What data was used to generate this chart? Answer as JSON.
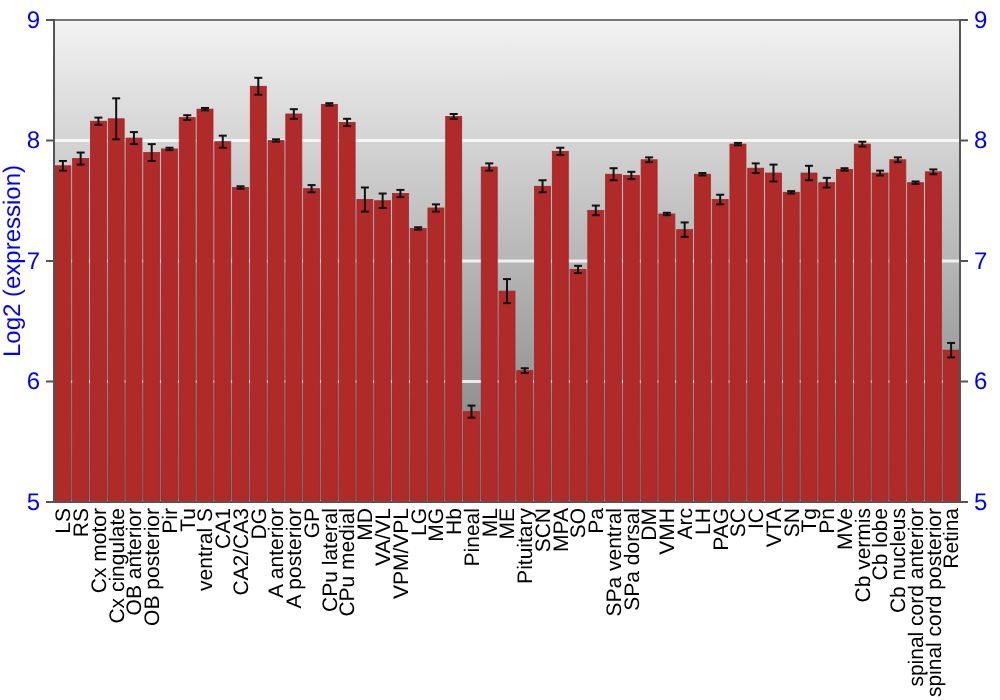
{
  "chart_data": {
    "type": "bar",
    "ylabel": "Log2 (expression)",
    "categories": [
      "LS",
      "RS",
      "Cx motor",
      "Cx cingulate",
      "OB anterior",
      "OB posterior",
      "Pir",
      "Tu",
      "ventral S",
      "CA1",
      "CA2/CA3",
      "DG",
      "A anterior",
      "A posterior",
      "GP",
      "CPu lateral",
      "CPu medial",
      "MD",
      "VA/VL",
      "VPM/VPL",
      "LG",
      "MG",
      "Hb",
      "Pineal",
      "ML",
      "ME",
      "Pituitary",
      "SCN",
      "MPA",
      "SO",
      "Pa",
      "SPa ventral",
      "SPa dorsal",
      "DM",
      "VMH",
      "Arc",
      "LH",
      "PAG",
      "SC",
      "IC",
      "VTA",
      "SN",
      "Tg",
      "Pn",
      "MVe",
      "Cb vermis",
      "Cb lobe",
      "Cb nucleus",
      "spinal cord anterior",
      "spinal cord posterior",
      "Retina"
    ],
    "values": [
      7.79,
      7.85,
      8.16,
      8.18,
      8.02,
      7.9,
      7.93,
      8.19,
      8.26,
      7.99,
      7.61,
      8.45,
      8.0,
      8.22,
      7.6,
      8.3,
      8.15,
      7.51,
      7.5,
      7.56,
      7.27,
      7.44,
      8.2,
      5.75,
      7.78,
      6.75,
      6.09,
      7.62,
      7.91,
      6.93,
      7.42,
      7.72,
      7.71,
      7.84,
      7.39,
      7.26,
      7.72,
      7.51,
      7.97,
      7.77,
      7.73,
      7.57,
      7.73,
      7.65,
      7.76,
      7.97,
      7.73,
      7.84,
      7.65,
      7.74,
      6.26
    ],
    "errors": [
      0.04,
      0.05,
      0.03,
      0.17,
      0.05,
      0.07,
      0.01,
      0.02,
      0.01,
      0.05,
      0.01,
      0.07,
      0.01,
      0.04,
      0.03,
      0.01,
      0.03,
      0.1,
      0.06,
      0.03,
      0.01,
      0.03,
      0.02,
      0.05,
      0.03,
      0.1,
      0.02,
      0.05,
      0.03,
      0.03,
      0.04,
      0.05,
      0.03,
      0.02,
      0.01,
      0.06,
      0.01,
      0.04,
      0.01,
      0.04,
      0.07,
      0.01,
      0.06,
      0.04,
      0.01,
      0.02,
      0.02,
      0.02,
      0.01,
      0.02,
      0.06
    ],
    "color": "#b02a2a",
    "ylim": [
      5,
      9
    ],
    "yticks": [
      5,
      6,
      7,
      8,
      9
    ],
    "y2lim": [
      5,
      9
    ],
    "y2ticks": [
      5,
      6,
      7,
      8,
      9
    ],
    "grid": "y"
  }
}
